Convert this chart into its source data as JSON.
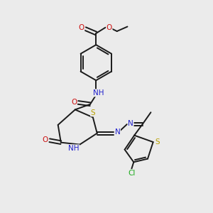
{
  "bg_color": "#ebebeb",
  "bond_color": "#1a1a1a",
  "N_color": "#2020cc",
  "O_color": "#cc1010",
  "S_color": "#b8a000",
  "Cl_color": "#1aaa1a",
  "lw": 1.4,
  "fs": 7.5,
  "xlim": [
    0,
    10
  ],
  "ylim": [
    0,
    10
  ]
}
